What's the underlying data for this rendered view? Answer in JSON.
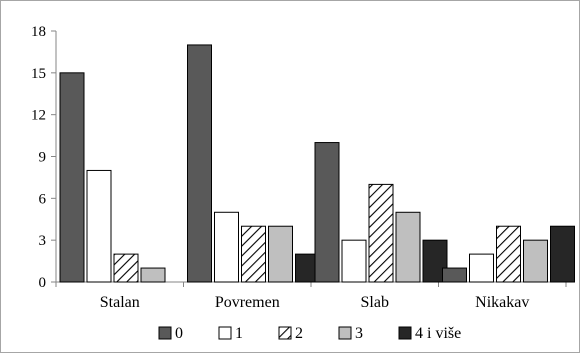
{
  "chart_data": {
    "type": "bar",
    "categories": [
      "Stalan",
      "Povremen",
      "Slab",
      "Nikakav"
    ],
    "series": [
      {
        "name": "0",
        "values": [
          15,
          17,
          10,
          1
        ],
        "fill": "#595959",
        "pattern": "solid"
      },
      {
        "name": "1",
        "values": [
          8,
          5,
          3,
          2
        ],
        "fill": "#ffffff",
        "pattern": "solid"
      },
      {
        "name": "2",
        "values": [
          2,
          4,
          7,
          4
        ],
        "fill": "#ffffff",
        "pattern": "hatch"
      },
      {
        "name": "3",
        "values": [
          1,
          4,
          5,
          3
        ],
        "fill": "#bfbfbf",
        "pattern": "solid"
      },
      {
        "name": "4 i više",
        "values": [
          0,
          2,
          3,
          4
        ],
        "fill": "#262626",
        "pattern": "solid"
      }
    ],
    "ylim": [
      0,
      18
    ],
    "yticks": [
      "0",
      "3",
      "6",
      "9",
      "12",
      "15",
      "18"
    ],
    "grid": false,
    "legend_position": "bottom"
  }
}
